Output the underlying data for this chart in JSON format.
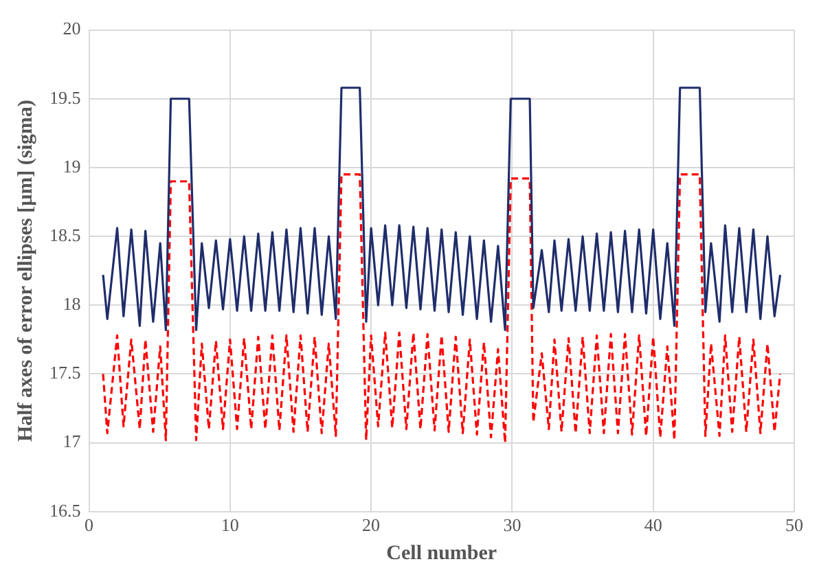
{
  "chart_data": {
    "type": "line",
    "xlabel": "Cell number",
    "ylabel": "Half axes of error ellipses [µm] (sigma)",
    "x": [
      1.0,
      1.3,
      2.0,
      2.45,
      3.0,
      3.6,
      4.0,
      4.55,
      5.05,
      5.45,
      5.8,
      7.1,
      7.6,
      8.0,
      8.5,
      9.0,
      9.5,
      10.0,
      10.5,
      11.0,
      11.5,
      12.0,
      12.5,
      13.0,
      13.5,
      14.0,
      14.5,
      15.0,
      15.5,
      16.0,
      16.5,
      17.0,
      17.5,
      17.9,
      19.2,
      19.65,
      20.0,
      20.5,
      21.0,
      21.5,
      22.0,
      22.5,
      23.0,
      23.5,
      24.0,
      24.5,
      25.0,
      25.5,
      26.0,
      26.5,
      27.0,
      27.5,
      28.0,
      28.5,
      29.0,
      29.5,
      29.9,
      31.25,
      31.5,
      32.1,
      32.6,
      33.0,
      33.5,
      34.0,
      34.5,
      35.0,
      35.5,
      36.0,
      36.5,
      37.0,
      37.5,
      38.0,
      38.5,
      39.0,
      39.5,
      40.0,
      40.5,
      41.0,
      41.5,
      41.9,
      43.3,
      43.7,
      44.1,
      44.7,
      45.1,
      45.6,
      46.1,
      46.6,
      47.1,
      47.6,
      48.1,
      48.6,
      49.0
    ],
    "series": [
      {
        "color": "#1f2d6b",
        "line_style": "solid",
        "values": [
          18.22,
          17.9,
          18.56,
          17.92,
          18.55,
          17.85,
          18.54,
          17.88,
          18.45,
          17.82,
          19.5,
          19.5,
          17.82,
          18.45,
          17.98,
          18.47,
          17.97,
          18.48,
          17.96,
          18.5,
          17.96,
          18.52,
          17.96,
          18.53,
          17.96,
          18.55,
          17.95,
          18.56,
          17.94,
          18.56,
          17.93,
          18.5,
          17.9,
          19.58,
          19.58,
          17.88,
          18.56,
          18.0,
          18.58,
          18.0,
          18.58,
          17.98,
          18.57,
          17.97,
          18.56,
          17.96,
          18.55,
          17.95,
          18.53,
          17.93,
          18.5,
          17.9,
          18.47,
          17.88,
          18.43,
          17.82,
          19.5,
          19.5,
          17.98,
          18.4,
          17.95,
          18.47,
          17.96,
          18.48,
          17.96,
          18.5,
          17.96,
          18.52,
          17.96,
          18.53,
          17.95,
          18.54,
          17.95,
          18.55,
          17.94,
          18.55,
          17.9,
          18.45,
          17.85,
          19.58,
          19.58,
          17.95,
          18.45,
          17.88,
          18.58,
          17.95,
          18.56,
          17.95,
          18.55,
          17.9,
          18.5,
          17.92,
          18.22
        ]
      },
      {
        "color": "#ff0000",
        "line_style": "dashed",
        "values": [
          17.5,
          17.07,
          17.78,
          17.12,
          17.75,
          17.1,
          17.75,
          17.08,
          17.7,
          17.02,
          18.9,
          18.9,
          17.02,
          17.72,
          17.1,
          17.74,
          17.1,
          17.75,
          17.1,
          17.76,
          17.1,
          17.77,
          17.1,
          17.78,
          17.09,
          17.78,
          17.08,
          17.78,
          17.08,
          17.77,
          17.07,
          17.72,
          17.05,
          18.95,
          18.95,
          17.02,
          17.78,
          17.12,
          17.8,
          17.11,
          17.8,
          17.1,
          17.8,
          17.1,
          17.79,
          17.09,
          17.78,
          17.08,
          17.77,
          17.07,
          17.75,
          17.06,
          17.73,
          17.04,
          17.68,
          17.0,
          18.92,
          18.92,
          17.15,
          17.65,
          17.1,
          17.75,
          17.08,
          17.76,
          17.07,
          17.77,
          17.07,
          17.78,
          17.07,
          17.79,
          17.07,
          17.79,
          17.06,
          17.78,
          17.05,
          17.77,
          17.04,
          17.7,
          17.02,
          18.95,
          18.95,
          17.05,
          17.72,
          17.05,
          17.78,
          17.08,
          17.77,
          17.08,
          17.75,
          17.07,
          17.72,
          17.08,
          17.5
        ]
      }
    ],
    "xlim": [
      0,
      50
    ],
    "xticks": [
      0,
      10,
      20,
      30,
      40,
      50
    ],
    "ylim": [
      16.5,
      20
    ],
    "yticks": [
      16.5,
      17,
      17.5,
      18,
      18.5,
      19,
      19.5,
      20
    ],
    "grid": true,
    "legend": false
  }
}
